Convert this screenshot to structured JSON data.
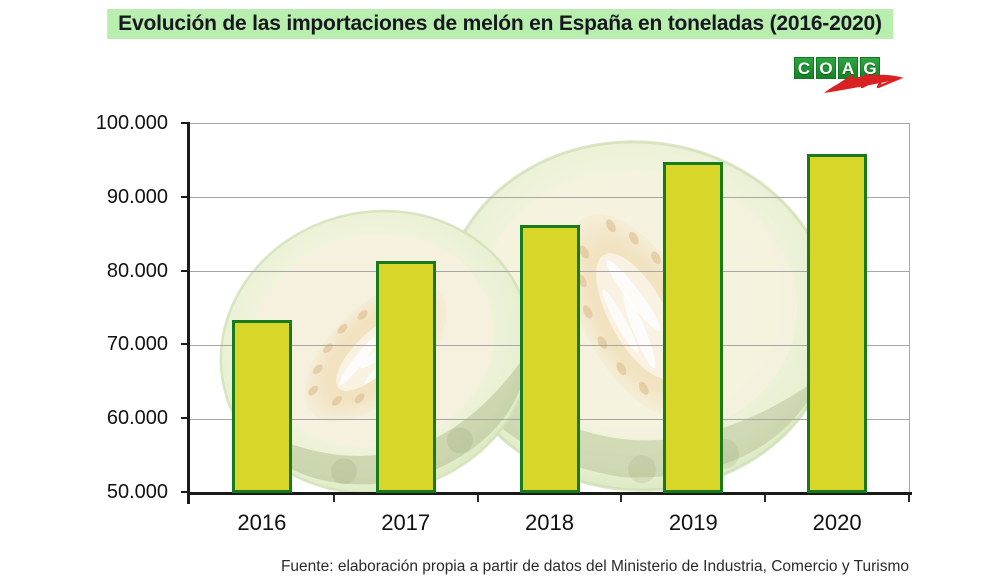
{
  "title": "Evolución de las importaciones de melón en España en toneladas (2016-2020)",
  "logo": {
    "name": "COAG",
    "letters": [
      "C",
      "O",
      "A",
      "G"
    ],
    "tile_color": "#1f9c38",
    "swoosh_color": "#dd1d1d"
  },
  "chart_data": {
    "type": "bar",
    "title": "Evolución de las importaciones de melón en España en toneladas (2016-2020)",
    "categories": [
      "2016",
      "2017",
      "2018",
      "2019",
      "2020"
    ],
    "values": [
      73500,
      81500,
      86300,
      94900,
      96000
    ],
    "unit": "toneladas",
    "xlabel": "",
    "ylabel": "",
    "ylim": [
      50000,
      100000
    ],
    "yticks": [
      {
        "value": 50000,
        "label": "50.000"
      },
      {
        "value": 60000,
        "label": "60.000"
      },
      {
        "value": 70000,
        "label": "70.000"
      },
      {
        "value": 80000,
        "label": "80.000"
      },
      {
        "value": 90000,
        "label": "90.000"
      },
      {
        "value": 100000,
        "label": "100.000"
      }
    ],
    "grid": true,
    "bar_fill": "#d8d628",
    "bar_border": "#177a1b",
    "source_note": "Fuente: elaboración propia a partir de datos del Ministerio de Industria, Comercio y Turismo"
  },
  "colors": {
    "title_background": "#b9efae",
    "title_text": "#17171f",
    "gridline": "#a6a6a6",
    "axis": "#1a1a1a"
  }
}
